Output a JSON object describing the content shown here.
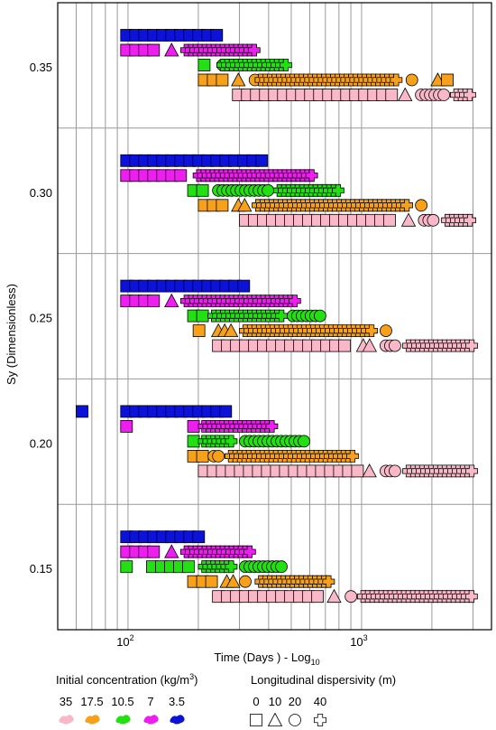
{
  "chart_data": {
    "type": "scatter",
    "title": "",
    "xlabel": "Time (Days ) - Log",
    "xlabel_subscript": "10",
    "ylabel": "Sy (Dimensionless)",
    "x_scale": "log",
    "xlim": [
      50,
      3600
    ],
    "x_ticks": [
      100,
      1000
    ],
    "x_tick_labels": [
      "10",
      "10"
    ],
    "x_tick_exponents": [
      "2",
      "3"
    ],
    "y_groups": [
      "0.35",
      "0.30",
      "0.25",
      "0.20",
      "0.15"
    ],
    "grid": true,
    "legend": {
      "concentration_title": "Initial concentration (kg/m",
      "concentration_title_sup": "3",
      "concentration_title_end": ")",
      "concentrations": [
        {
          "label": "35",
          "color": "#f9b8c8"
        },
        {
          "label": "17.5",
          "color": "#f7a11a"
        },
        {
          "label": "10.5",
          "color": "#22e012"
        },
        {
          "label": "7",
          "color": "#ef1ef0"
        },
        {
          "label": "3.5",
          "color": "#0c12d8"
        }
      ],
      "dispersivity_title": "Longitudinal dispersivity (m)",
      "dispersivities": [
        {
          "label": "0",
          "shape": "square"
        },
        {
          "label": "10",
          "shape": "triangle"
        },
        {
          "label": "20",
          "shape": "circle"
        },
        {
          "label": "40",
          "shape": "cross"
        }
      ]
    },
    "series": [
      {
        "sy": "0.35",
        "concentration": "3.5",
        "segments": [
          [
            "square",
            93,
            260
          ]
        ]
      },
      {
        "sy": "0.35",
        "concentration": "7",
        "segments": [
          [
            "square",
            93,
            145
          ],
          [
            "triangle",
            145,
            168
          ],
          [
            "cross",
            168,
            380
          ]
        ]
      },
      {
        "sy": "0.35",
        "concentration": "10.5",
        "segments": [
          [
            "square",
            200,
            240
          ],
          [
            "circle",
            240,
            310
          ],
          [
            "cross",
            240,
            520
          ]
        ]
      },
      {
        "sy": "0.35",
        "concentration": "17.5",
        "segments": [
          [
            "square",
            200,
            280
          ],
          [
            "triangle",
            280,
            330
          ],
          [
            "circle",
            330,
            350
          ],
          [
            "cross",
            350,
            1500
          ],
          [
            "circle",
            1550,
            1800
          ],
          [
            "triangle",
            2000,
            2200
          ],
          [
            "square",
            2200,
            2500
          ]
        ]
      },
      {
        "sy": "0.35",
        "concentration": "35",
        "segments": [
          [
            "square",
            280,
            1450
          ],
          [
            "triangle",
            1450,
            1700
          ],
          [
            "circle",
            1700,
            2400
          ],
          [
            "cross",
            2400,
            3200
          ]
        ]
      },
      {
        "sy": "0.30",
        "concentration": "3.5",
        "segments": [
          [
            "square",
            93,
            410
          ]
        ]
      },
      {
        "sy": "0.30",
        "concentration": "7",
        "segments": [
          [
            "square",
            93,
            190
          ],
          [
            "cross",
            190,
            650
          ]
        ]
      },
      {
        "sy": "0.30",
        "concentration": "10.5",
        "segments": [
          [
            "square",
            180,
            230
          ],
          [
            "circle",
            230,
            420
          ],
          [
            "cross",
            420,
            840
          ]
        ]
      },
      {
        "sy": "0.30",
        "concentration": "17.5",
        "segments": [
          [
            "square",
            200,
            280
          ],
          [
            "triangle",
            280,
            340
          ],
          [
            "cross",
            340,
            1700
          ],
          [
            "circle",
            1700,
            1850
          ]
        ]
      },
      {
        "sy": "0.30",
        "concentration": "35",
        "segments": [
          [
            "square",
            300,
            1500
          ],
          [
            "triangle",
            1500,
            1750
          ],
          [
            "circle",
            1750,
            2200
          ],
          [
            "cross",
            2200,
            3200
          ]
        ]
      },
      {
        "sy": "0.25",
        "concentration": "3.5",
        "segments": [
          [
            "square",
            93,
            350
          ]
        ]
      },
      {
        "sy": "0.25",
        "concentration": "7",
        "segments": [
          [
            "square",
            93,
            145
          ],
          [
            "triangle",
            145,
            168
          ],
          [
            "cross",
            168,
            550
          ]
        ]
      },
      {
        "sy": "0.25",
        "concentration": "10.5",
        "segments": [
          [
            "square",
            180,
            220
          ],
          [
            "cross",
            220,
            480
          ],
          [
            "circle",
            480,
            720
          ]
        ]
      },
      {
        "sy": "0.25",
        "concentration": "17.5",
        "segments": [
          [
            "square",
            190,
            230
          ],
          [
            "triangle",
            230,
            300
          ],
          [
            "cross",
            300,
            1200
          ],
          [
            "circle",
            1200,
            1400
          ]
        ]
      },
      {
        "sy": "0.25",
        "concentration": "35",
        "segments": [
          [
            "square",
            230,
            960
          ],
          [
            "triangle",
            960,
            1200
          ],
          [
            "circle",
            1200,
            1500
          ],
          [
            "cross",
            1500,
            3200
          ]
        ]
      },
      {
        "sy": "0.20",
        "concentration": "3.5",
        "segments": [
          [
            "square",
            60,
            66
          ],
          [
            "square",
            93,
            290
          ]
        ]
      },
      {
        "sy": "0.20",
        "concentration": "7",
        "segments": [
          [
            "square",
            93,
            100
          ],
          [
            "square",
            180,
            200
          ],
          [
            "cross",
            200,
            450
          ]
        ]
      },
      {
        "sy": "0.20",
        "concentration": "10.5",
        "segments": [
          [
            "square",
            180,
            200
          ],
          [
            "cross",
            200,
            300
          ],
          [
            "circle",
            300,
            600
          ]
        ]
      },
      {
        "sy": "0.20",
        "concentration": "17.5",
        "segments": [
          [
            "square",
            180,
            220
          ],
          [
            "circle",
            220,
            260
          ],
          [
            "cross",
            260,
            1000
          ]
        ]
      },
      {
        "sy": "0.20",
        "concentration": "35",
        "segments": [
          [
            "square",
            200,
            1020
          ],
          [
            "triangle",
            1020,
            1200
          ],
          [
            "circle",
            1200,
            1500
          ],
          [
            "cross",
            1500,
            3200
          ]
        ]
      },
      {
        "sy": "0.15",
        "concentration": "3.5",
        "segments": [
          [
            "square",
            93,
            225
          ]
        ]
      },
      {
        "sy": "0.15",
        "concentration": "7",
        "segments": [
          [
            "square",
            93,
            145
          ],
          [
            "triangle",
            145,
            168
          ],
          [
            "cross",
            168,
            360
          ]
        ]
      },
      {
        "sy": "0.15",
        "concentration": "10.5",
        "segments": [
          [
            "square",
            93,
            100
          ],
          [
            "square",
            120,
            200
          ],
          [
            "cross",
            200,
            300
          ],
          [
            "circle",
            300,
            500
          ]
        ]
      },
      {
        "sy": "0.15",
        "concentration": "17.5",
        "segments": [
          [
            "square",
            180,
            250
          ],
          [
            "triangle",
            250,
            300
          ],
          [
            "circle",
            300,
            350
          ],
          [
            "cross",
            350,
            780
          ]
        ]
      },
      {
        "sy": "0.15",
        "concentration": "35",
        "segments": [
          [
            "square",
            230,
            720
          ],
          [
            "triangle",
            720,
            850
          ],
          [
            "circle",
            850,
            960
          ],
          [
            "cross",
            960,
            3200
          ]
        ]
      }
    ]
  }
}
